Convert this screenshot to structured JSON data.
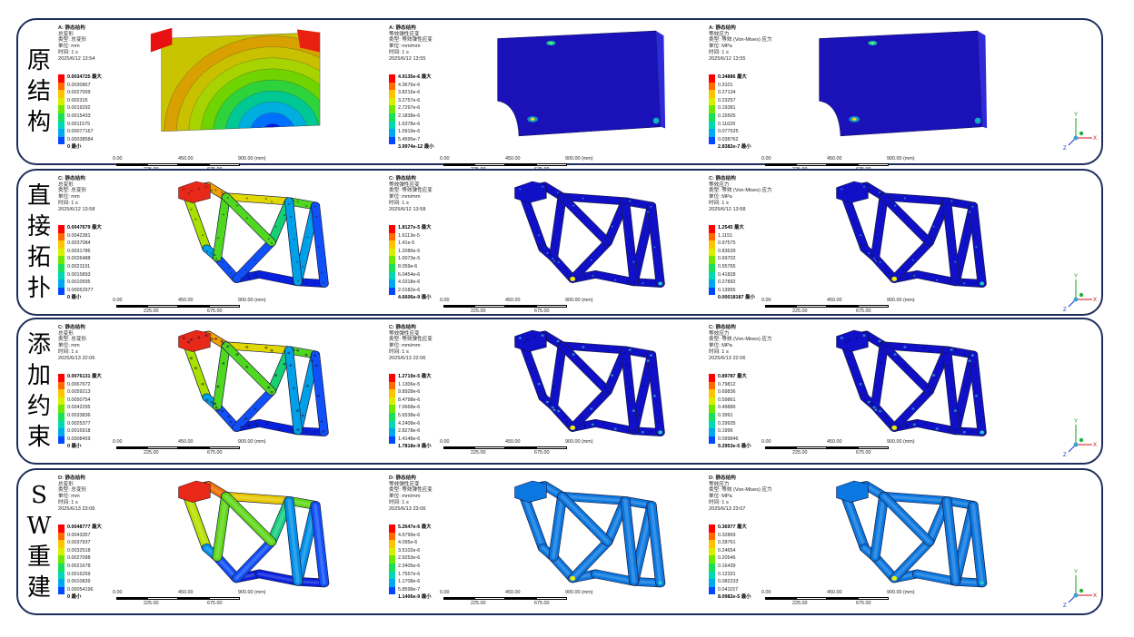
{
  "rows": [
    {
      "title": [
        "原",
        "结",
        "构"
      ],
      "panels": [
        {
          "info": [
            "A: 静态结构",
            "总变形",
            "类型: 总变形",
            "单位: mm",
            "时间: 1 s",
            "2025/6/12 13:54"
          ],
          "legend": [
            "0.0034725 最大",
            "0.0030867",
            "0.0027009",
            "0.002315",
            "0.0019292",
            "0.0015433",
            "0.0011575",
            "0.00077167",
            "0.00038584",
            "0 最小"
          ],
          "scale": {
            "top": [
              "0.00",
              "450.00",
              "900.00 (mm)"
            ],
            "bottom": [
              "225.00",
              "675.00"
            ]
          }
        },
        {
          "info": [
            "A: 静态结构",
            "等效弹性应变",
            "类型: 等效弹性应变",
            "单位: mm/mm",
            "时间: 1 s",
            "2025/6/12 13:55"
          ],
          "legend": [
            "4.9135e-6 最大",
            "4.3676e-6",
            "3.8216e-6",
            "3.2757e-6",
            "2.7297e-6",
            "2.1838e-6",
            "1.6378e-6",
            "1.0919e-6",
            "5.4595e-7",
            "3.9974e-12 最小"
          ],
          "scale": {
            "top": [
              "0.00",
              "450.00",
              "900.00 (mm)"
            ],
            "bottom": [
              "225.00",
              "675.00"
            ]
          }
        },
        {
          "info": [
            "A: 静态结构",
            "等效应力",
            "类型: 等效 (Von-Mises) 应力",
            "单位: MPa",
            "时间: 1 s",
            "2025/6/12 13:55"
          ],
          "legend": [
            "0.34886 最大",
            "0.3101",
            "0.27134",
            "0.23257",
            "0.19381",
            "0.15505",
            "0.11629",
            "0.077525",
            "0.038762",
            "2.8382e-7 最小"
          ],
          "scale": {
            "top": [
              "0.00",
              "450.00",
              "900.00 (mm)"
            ],
            "bottom": [
              "225.00",
              "675.00"
            ]
          }
        }
      ]
    },
    {
      "title": [
        "直",
        "接",
        "拓",
        "扑"
      ],
      "panels": [
        {
          "info": [
            "C: 静态结构",
            "总变形",
            "类型: 总变形",
            "单位: mm",
            "时间: 1 s",
            "2025/6/12 13:58"
          ],
          "legend": [
            "0.0047679 最大",
            "0.0042381",
            "0.0037084",
            "0.0031786",
            "0.0026488",
            "0.0021191",
            "0.0015893",
            "0.0010595",
            "0.00052977",
            "0 最小"
          ],
          "scale": {
            "top": [
              "0.00",
              "450.00",
              "900.00 (mm)"
            ],
            "bottom": [
              "225.00",
              "675.00"
            ]
          }
        },
        {
          "info": [
            "C: 静态结构",
            "等效弹性应变",
            "类型: 等效弹性应变",
            "单位: mm/mm",
            "时间: 1 s",
            "2025/6/12 13:58"
          ],
          "legend": [
            "1.8127e-5 最大",
            "1.6113e-5",
            "1.41e-5",
            "1.2086e-5",
            "1.0073e-5",
            "8.059e-6",
            "6.0454e-6",
            "4.0318e-6",
            "2.0182e-6",
            "4.6606e-9 最小"
          ],
          "scale": {
            "top": [
              "0.00",
              "450.00",
              "900.00 (mm)"
            ],
            "bottom": [
              "225.00",
              "675.00"
            ]
          }
        },
        {
          "info": [
            "C: 静态结构",
            "等效应力",
            "类型: 等效 (Von-Mises) 应力",
            "单位: MPa",
            "时间: 1 s",
            "2025/6/12 13:58"
          ],
          "legend": [
            "1.2545 最大",
            "1.1151",
            "0.97575",
            "0.83639",
            "0.69702",
            "0.55765",
            "0.41828",
            "0.27892",
            "0.13955",
            "0.00018187 最小"
          ],
          "scale": {
            "top": [
              "0.00",
              "450.00",
              "900.00 (mm)"
            ],
            "bottom": [
              "225.00",
              "675.00"
            ]
          }
        }
      ]
    },
    {
      "title": [
        "添",
        "加",
        "约",
        "束"
      ],
      "panels": [
        {
          "info": [
            "C: 静态结构",
            "总变形",
            "类型: 总变形",
            "单位: mm",
            "时间: 1 s",
            "2025/6/13 22:06"
          ],
          "legend": [
            "0.0076131 最大",
            "0.0067672",
            "0.0059213",
            "0.0050754",
            "0.0042295",
            "0.0033836",
            "0.0025377",
            "0.0016918",
            "0.0008459",
            "0 最小"
          ],
          "scale": {
            "top": [
              "0.00",
              "450.00",
              "900.00 (mm)"
            ],
            "bottom": [
              "225.00",
              "675.00"
            ]
          }
        },
        {
          "info": [
            "C: 静态结构",
            "等效弹性应变",
            "类型: 等效弹性应变",
            "单位: mm/mm",
            "时间: 1 s",
            "2025/6/13 22:06"
          ],
          "legend": [
            "1.2719e-5 最大",
            "1.1306e-5",
            "9.8928e-6",
            "8.4798e-6",
            "7.0668e-6",
            "5.6538e-6",
            "4.2408e-6",
            "2.8278e-6",
            "1.4148e-6",
            "1.7818e-9 最小"
          ],
          "scale": {
            "top": [
              "0.00",
              "450.00",
              "900.00 (mm)"
            ],
            "bottom": [
              "225.00",
              "675.00"
            ]
          }
        },
        {
          "info": [
            "C: 静态结构",
            "等效应力",
            "类型: 等效 (Von-Mises) 应力",
            "单位: MPa",
            "时间: 1 s",
            "2025/6/13 22:06"
          ],
          "legend": [
            "0.89787 最大",
            "0.79812",
            "0.69836",
            "0.59861",
            "0.49886",
            "0.3991",
            "0.29935",
            "0.1996",
            "0.099846",
            "9.2953e-5 最小"
          ],
          "scale": {
            "top": [
              "0.00",
              "450.00",
              "900.00 (mm)"
            ],
            "bottom": [
              "225.00",
              "675.00"
            ]
          }
        }
      ]
    },
    {
      "title": [
        "S",
        "W",
        "重",
        "建"
      ],
      "panels": [
        {
          "info": [
            "D: 静态结构",
            "总变形",
            "类型: 总变形",
            "单位: mm",
            "时间: 1 s",
            "2025/6/13 23:06"
          ],
          "legend": [
            "0.0048777 最大",
            "0.0043357",
            "0.0037937",
            "0.0032518",
            "0.0027098",
            "0.0021678",
            "0.0016259",
            "0.0010839",
            "0.00054196",
            "0 最小"
          ],
          "scale": {
            "top": [
              "0.00",
              "450.00",
              "900.00 (mm)"
            ],
            "bottom": [
              "225.00",
              "675.00"
            ]
          }
        },
        {
          "info": [
            "D: 静态结构",
            "等效弹性应变",
            "类型: 等效弹性应变",
            "单位: mm/mm",
            "时间: 1 s",
            "2025/6/13 23:06"
          ],
          "legend": [
            "5.2647e-6 最大",
            "4.6799e-6",
            "4.095e-6",
            "3.5102e-6",
            "2.9253e-6",
            "2.3405e-6",
            "1.7557e-6",
            "1.1708e-6",
            "5.8598e-7",
            "1.1406e-9 最小"
          ],
          "scale": {
            "top": [
              "0.00",
              "450.00",
              "900.00 (mm)"
            ],
            "bottom": [
              "225.00",
              "675.00"
            ]
          }
        },
        {
          "info": [
            "D: 静态结构",
            "等效应力",
            "类型: 等效 (Von-Mises) 应力",
            "单位: MPa",
            "时间: 1 s",
            "2025/6/13 23:07"
          ],
          "legend": [
            "0.36977 最大",
            "0.32869",
            "0.28761",
            "0.24654",
            "0.20546",
            "0.16439",
            "0.12331",
            "0.082233",
            "0.041157",
            "8.0982e-5 最小"
          ],
          "scale": {
            "top": [
              "0.00",
              "450.00",
              "900.00 (mm)"
            ],
            "bottom": [
              "225.00",
              "675.00"
            ]
          }
        }
      ]
    }
  ],
  "axis_labels": {
    "x": "X",
    "y": "Y",
    "z": "Z"
  },
  "legend_colors": [
    "#ff0000",
    "#ff6a00",
    "#ffc400",
    "#d8f000",
    "#6ee800",
    "#18e05a",
    "#00d9b4",
    "#00a8f0",
    "#0048ff",
    "#0000e0"
  ]
}
